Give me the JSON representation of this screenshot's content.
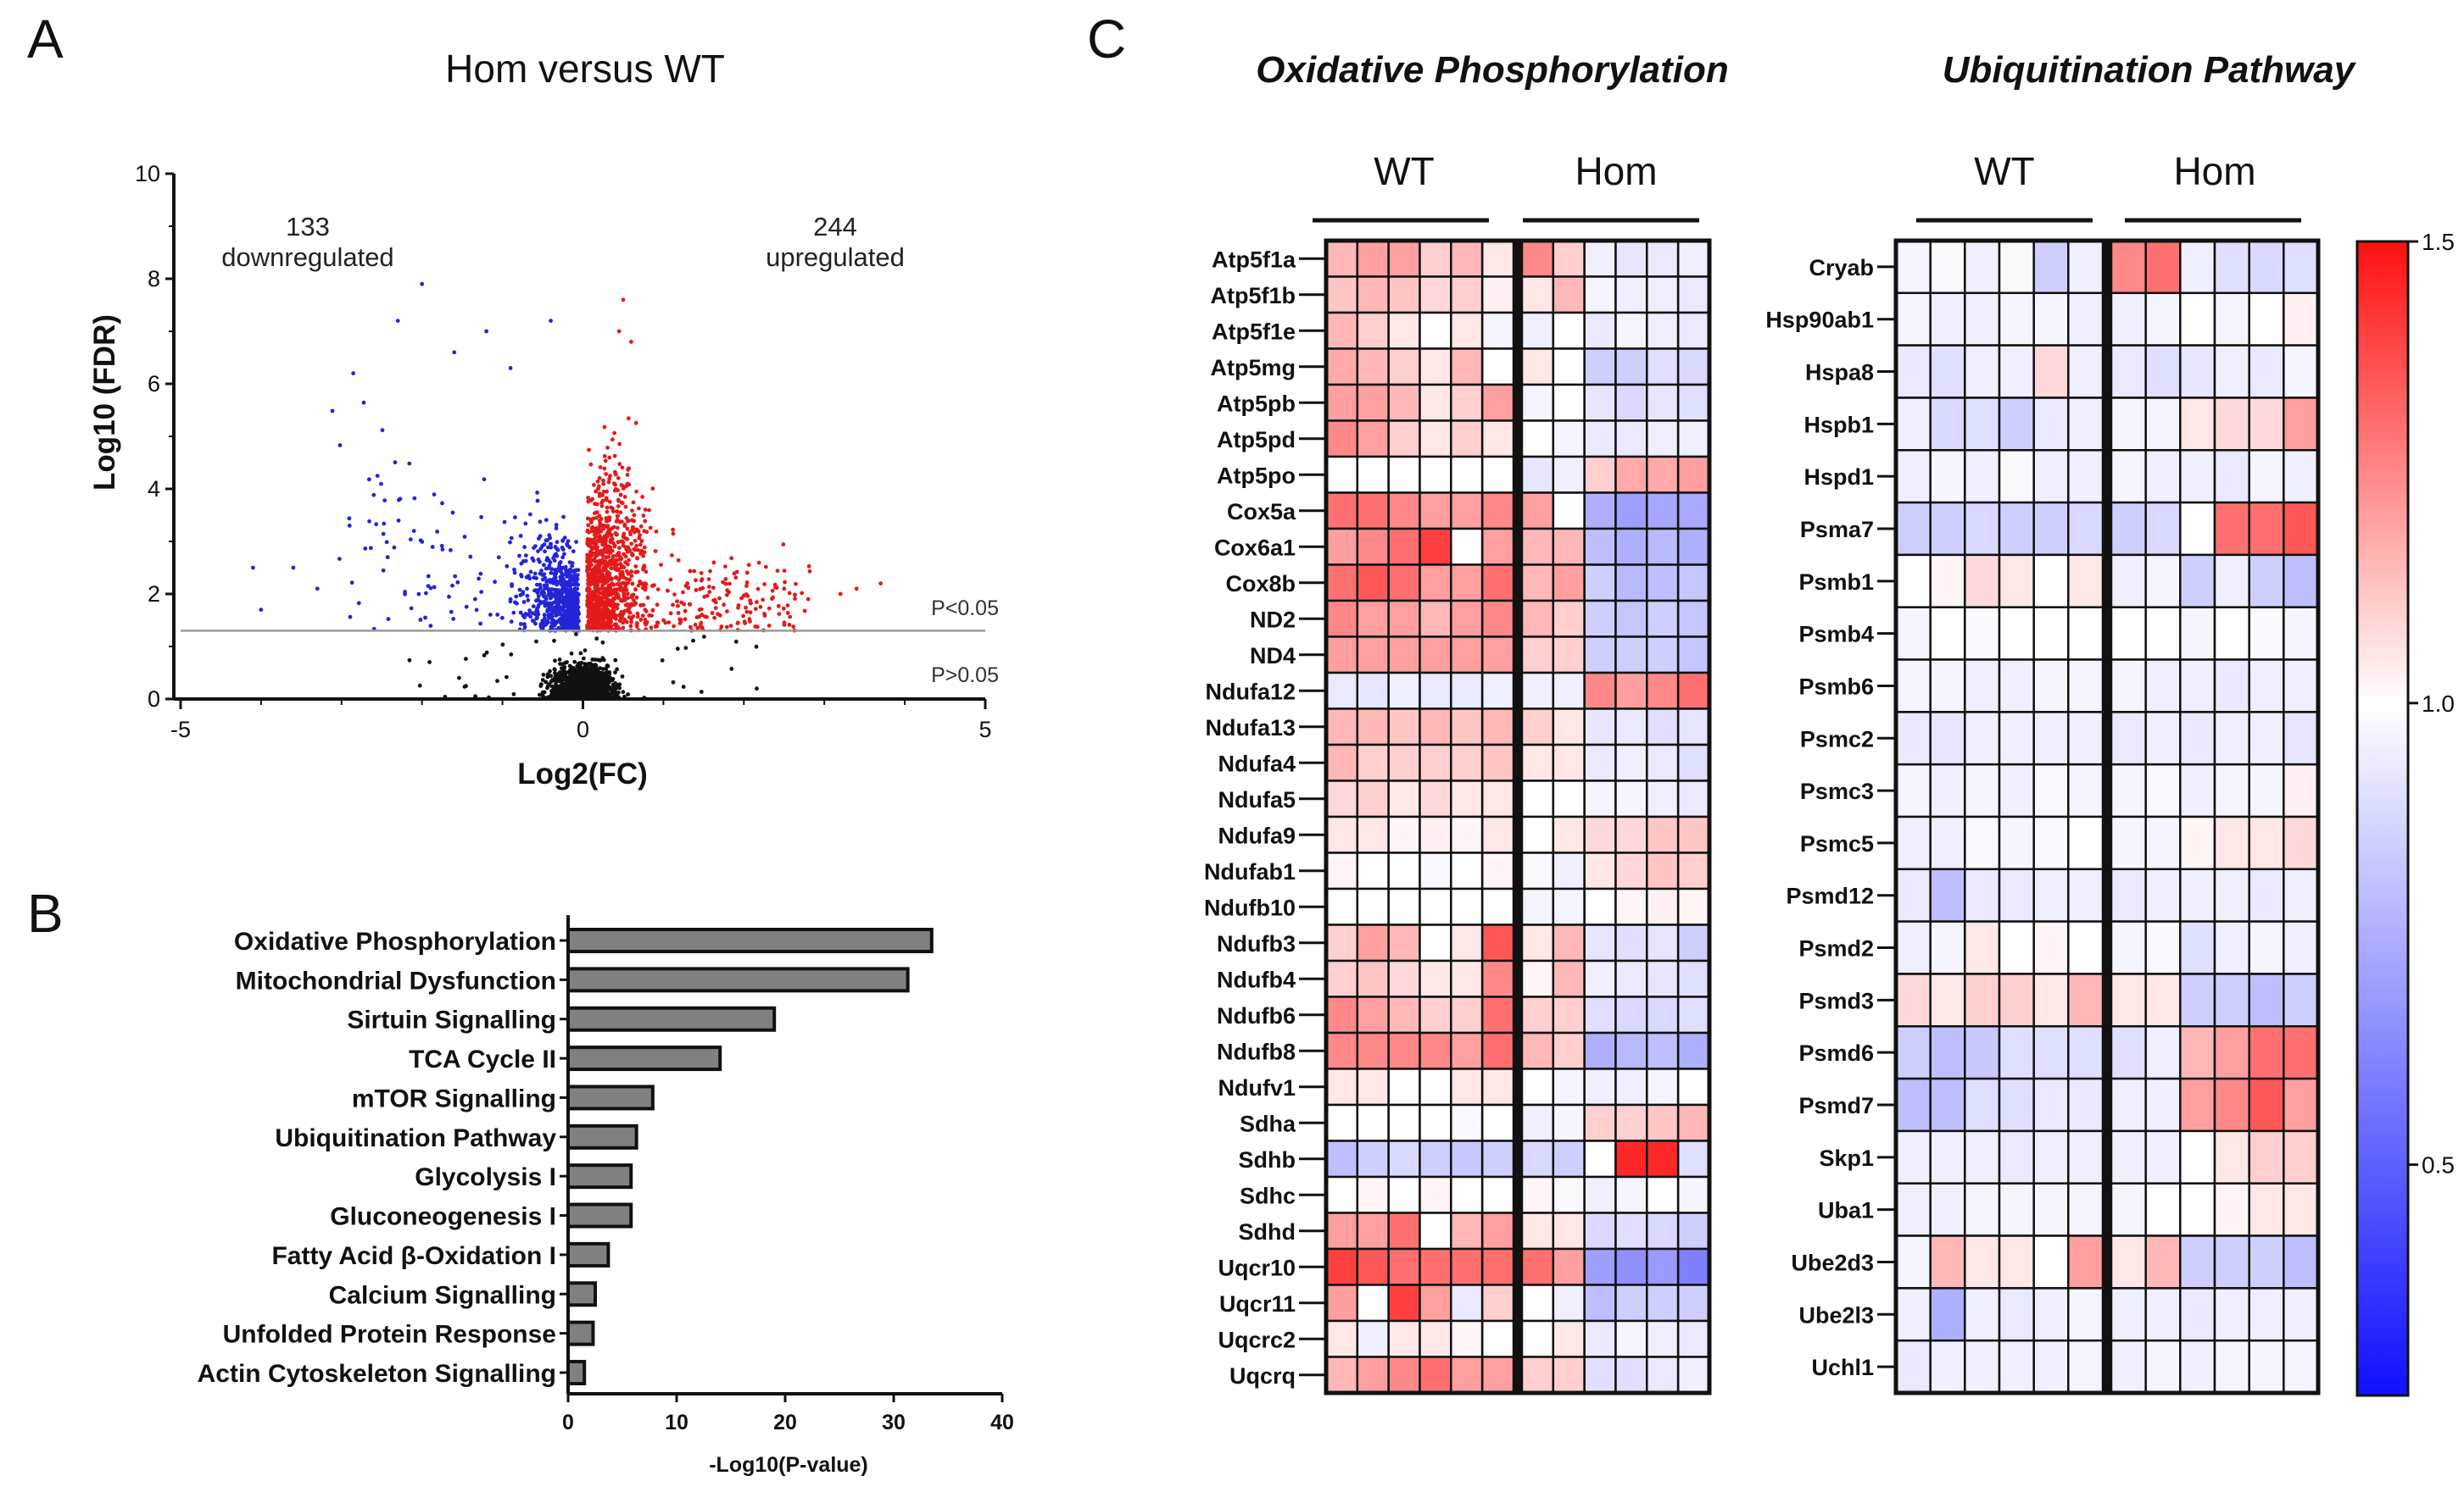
{
  "chart_data": [
    {
      "panel": "A",
      "type": "scatter",
      "title": "Hom versus WT",
      "xlabel": "Log2(FC)",
      "ylabel": "Log10 (FDR)",
      "xlim": [
        -5,
        5
      ],
      "ylim": [
        0,
        10
      ],
      "x_ticks": [
        "-5",
        "0",
        "5"
      ],
      "y_ticks": [
        "0",
        "2",
        "4",
        "6",
        "8",
        "10"
      ],
      "threshold_y": 1.3,
      "threshold_labels": {
        "above": "P<0.05",
        "below": "P>0.05"
      },
      "annotations": {
        "down_count": "133",
        "down_label": "downregulated",
        "up_count": "244",
        "up_label": "upregulated"
      },
      "series": [
        {
          "name": "downregulated",
          "color": "#2424d8",
          "n": 700
        },
        {
          "name": "upregulated",
          "color": "#e41a1a",
          "n": 1250
        },
        {
          "name": "not significant",
          "color": "#111111",
          "n": 1100
        }
      ],
      "outliers": [
        {
          "x": -2.0,
          "y": 7.9
        },
        {
          "x": -2.3,
          "y": 7.2
        },
        {
          "x": -1.2,
          "y": 7.0
        },
        {
          "x": -0.4,
          "y": 7.2
        },
        {
          "x": -3.6,
          "y": 2.5
        },
        {
          "x": -4.1,
          "y": 2.5
        },
        {
          "x": -4.0,
          "y": 1.7
        },
        {
          "x": -3.3,
          "y": 2.1
        },
        {
          "x": -2.9,
          "y": 3.3
        },
        {
          "x": -2.1,
          "y": 3.2
        },
        {
          "x": -1.6,
          "y": 6.6
        },
        {
          "x": -0.9,
          "y": 6.3
        },
        {
          "x": 0.5,
          "y": 7.6
        },
        {
          "x": 0.45,
          "y": 7.0
        },
        {
          "x": 0.6,
          "y": 6.8
        },
        {
          "x": 3.7,
          "y": 2.2
        },
        {
          "x": 3.2,
          "y": 2.0
        },
        {
          "x": 2.8,
          "y": 1.9
        },
        {
          "x": 3.4,
          "y": 2.1
        },
        {
          "x": 2.5,
          "y": 2.1
        }
      ]
    },
    {
      "panel": "B",
      "type": "bar",
      "orientation": "horizontal",
      "xlabel": "-Log10(P-value)",
      "xlim": [
        0,
        40
      ],
      "x_ticks": [
        "0",
        "10",
        "20",
        "30",
        "40"
      ],
      "categories": [
        "Oxidative Phosphorylation",
        "Mitochondrial Dysfunction",
        "Sirtuin Signalling",
        "TCA Cycle II",
        "mTOR Signalling",
        "Ubiquitination Pathway",
        "Glycolysis I",
        "Gluconeogenesis I",
        "Fatty Acid β-Oxidation I",
        "Calcium Signalling",
        "Unfolded Protein Response",
        "Actin Cytoskeleton Signalling"
      ],
      "values": [
        33.5,
        31.3,
        19.0,
        14.0,
        7.8,
        6.3,
        5.8,
        5.8,
        3.7,
        2.5,
        2.3,
        1.5
      ],
      "bar_color": "#808080"
    },
    {
      "panel": "C1",
      "type": "heatmap",
      "title": "Oxidative Phosphorylation",
      "groups": [
        "WT",
        "Hom"
      ],
      "rows": [
        "Atp5f1a",
        "Atp5f1b",
        "Atp5f1e",
        "Atp5mg",
        "Atp5pb",
        "Atp5pd",
        "Atp5po",
        "Cox5a",
        "Cox6a1",
        "Cox8b",
        "ND2",
        "ND4",
        "Ndufa12",
        "Ndufa13",
        "Ndufa4",
        "Ndufa5",
        "Ndufa9",
        "Ndufab1",
        "Ndufb10",
        "Ndufb3",
        "Ndufb4",
        "Ndufb6",
        "Ndufb8",
        "Ndufv1",
        "Sdha",
        "Sdhb",
        "Sdhc",
        "Sdhd",
        "Uqcr10",
        "Uqcr11",
        "Uqcrc2",
        "Uqcrq"
      ],
      "values": [
        [
          1.15,
          1.2,
          1.2,
          1.1,
          1.15,
          1.05,
          1.25,
          1.1,
          0.95,
          0.92,
          0.93,
          0.95
        ],
        [
          1.12,
          1.15,
          1.12,
          1.08,
          1.1,
          1.03,
          1.05,
          1.15,
          0.97,
          0.95,
          0.95,
          0.93
        ],
        [
          1.15,
          1.1,
          1.05,
          1.0,
          1.05,
          0.97,
          0.95,
          1.0,
          0.93,
          0.97,
          0.95,
          0.93
        ],
        [
          1.18,
          1.15,
          1.1,
          1.05,
          1.15,
          1.0,
          1.05,
          1.0,
          0.85,
          0.85,
          0.9,
          0.88
        ],
        [
          1.2,
          1.2,
          1.15,
          1.05,
          1.1,
          1.2,
          0.97,
          1.0,
          0.92,
          0.88,
          0.92,
          0.9
        ],
        [
          1.25,
          1.2,
          1.1,
          1.05,
          1.1,
          1.05,
          1.0,
          0.97,
          0.93,
          0.93,
          0.95,
          0.95
        ],
        [
          1.0,
          1.0,
          1.0,
          1.0,
          1.0,
          1.0,
          0.92,
          0.95,
          1.1,
          1.18,
          1.18,
          1.2
        ],
        [
          1.3,
          1.3,
          1.25,
          1.2,
          1.2,
          1.25,
          1.2,
          1.0,
          0.75,
          0.7,
          0.72,
          0.73
        ],
        [
          1.2,
          1.25,
          1.3,
          1.4,
          1.0,
          1.2,
          1.15,
          1.15,
          0.8,
          0.75,
          0.78,
          0.75
        ],
        [
          1.3,
          1.35,
          1.3,
          1.2,
          1.2,
          1.3,
          1.15,
          1.2,
          0.85,
          0.78,
          0.8,
          0.82
        ],
        [
          1.25,
          1.2,
          1.2,
          1.15,
          1.2,
          1.25,
          1.15,
          1.1,
          0.85,
          0.82,
          0.85,
          0.82
        ],
        [
          1.2,
          1.2,
          1.2,
          1.2,
          1.2,
          1.2,
          1.1,
          1.1,
          0.85,
          0.85,
          0.85,
          0.82
        ],
        [
          0.93,
          0.92,
          0.95,
          0.93,
          0.93,
          0.95,
          0.95,
          0.95,
          1.25,
          1.2,
          1.25,
          1.3
        ],
        [
          1.15,
          1.15,
          1.12,
          1.15,
          1.12,
          1.15,
          1.1,
          1.05,
          0.92,
          0.93,
          0.9,
          0.92
        ],
        [
          1.15,
          1.1,
          1.1,
          1.1,
          1.1,
          1.12,
          1.05,
          1.05,
          0.93,
          0.95,
          0.93,
          0.9
        ],
        [
          1.08,
          1.1,
          1.05,
          1.08,
          1.05,
          1.05,
          1.0,
          1.0,
          0.97,
          0.97,
          0.95,
          0.93
        ],
        [
          1.05,
          1.05,
          1.02,
          1.03,
          1.02,
          1.05,
          1.0,
          1.05,
          1.08,
          1.08,
          1.12,
          1.12
        ],
        [
          1.02,
          1.0,
          1.0,
          0.98,
          1.0,
          1.02,
          0.98,
          0.95,
          1.05,
          1.08,
          1.12,
          1.1
        ],
        [
          1.0,
          1.0,
          1.0,
          1.0,
          1.0,
          1.0,
          0.97,
          0.97,
          1.0,
          1.02,
          1.03,
          1.02
        ],
        [
          1.1,
          1.2,
          1.15,
          1.0,
          1.05,
          1.35,
          1.05,
          1.15,
          0.92,
          0.9,
          0.92,
          0.85
        ],
        [
          1.1,
          1.12,
          1.08,
          1.05,
          1.05,
          1.25,
          1.02,
          1.15,
          0.95,
          0.93,
          0.92,
          0.9
        ],
        [
          1.25,
          1.2,
          1.15,
          1.1,
          1.1,
          1.3,
          1.1,
          1.1,
          0.9,
          0.88,
          0.88,
          0.9
        ],
        [
          1.25,
          1.25,
          1.25,
          1.25,
          1.2,
          1.3,
          1.15,
          1.1,
          0.75,
          0.78,
          0.8,
          0.75
        ],
        [
          1.05,
          1.05,
          1.0,
          1.0,
          1.05,
          1.05,
          1.0,
          0.97,
          0.95,
          0.95,
          0.97,
          1.0
        ],
        [
          1.0,
          1.0,
          1.0,
          1.0,
          0.98,
          1.0,
          0.95,
          0.97,
          1.1,
          1.1,
          1.12,
          1.15
        ],
        [
          0.8,
          0.85,
          0.88,
          0.85,
          0.83,
          0.85,
          0.88,
          0.85,
          1.0,
          1.45,
          1.45,
          0.9
        ],
        [
          1.0,
          1.02,
          1.0,
          1.02,
          1.0,
          1.0,
          1.02,
          0.98,
          0.95,
          0.97,
          1.0,
          0.97
        ],
        [
          1.2,
          1.2,
          1.3,
          1.0,
          1.15,
          1.2,
          1.05,
          1.05,
          0.88,
          0.9,
          0.88,
          0.85
        ],
        [
          1.4,
          1.35,
          1.3,
          1.3,
          1.3,
          1.3,
          1.3,
          1.2,
          0.7,
          0.65,
          0.68,
          0.6
        ],
        [
          1.2,
          1.0,
          1.4,
          1.2,
          0.93,
          1.1,
          1.0,
          0.95,
          0.8,
          0.85,
          0.85,
          0.85
        ],
        [
          1.05,
          0.95,
          1.05,
          1.05,
          1.02,
          1.0,
          1.0,
          1.05,
          0.93,
          0.97,
          0.95,
          0.93
        ],
        [
          1.15,
          1.2,
          1.25,
          1.3,
          1.2,
          1.2,
          1.1,
          1.1,
          0.9,
          0.9,
          0.93,
          0.95
        ]
      ],
      "scale_range": [
        0.25,
        1.5
      ]
    },
    {
      "panel": "C2",
      "type": "heatmap",
      "title": "Ubiquitination Pathway",
      "groups": [
        "WT",
        "Hom"
      ],
      "rows": [
        "Cryab",
        "Hsp90ab1",
        "Hspa8",
        "Hspb1",
        "Hspd1",
        "Psma7",
        "Psmb1",
        "Psmb4",
        "Psmb6",
        "Psmc2",
        "Psmc3",
        "Psmc5",
        "Psmd12",
        "Psmd2",
        "Psmd3",
        "Psmd6",
        "Psmd7",
        "Skp1",
        "Uba1",
        "Ube2d3",
        "Ube2l3",
        "Uchl1"
      ],
      "values": [
        [
          0.97,
          0.98,
          0.95,
          0.98,
          0.85,
          0.95,
          1.25,
          1.3,
          0.95,
          0.9,
          0.88,
          0.9
        ],
        [
          0.97,
          0.95,
          0.95,
          0.97,
          0.97,
          0.95,
          0.95,
          0.97,
          1.0,
          0.97,
          1.0,
          1.03
        ],
        [
          0.93,
          0.9,
          0.95,
          0.95,
          1.08,
          0.95,
          0.93,
          0.9,
          0.92,
          0.95,
          0.93,
          0.97
        ],
        [
          0.95,
          0.88,
          0.9,
          0.85,
          0.93,
          0.95,
          0.97,
          0.97,
          1.05,
          1.08,
          1.08,
          1.2
        ],
        [
          0.95,
          0.97,
          0.95,
          0.98,
          0.95,
          0.95,
          0.97,
          0.95,
          0.95,
          0.93,
          0.97,
          0.95
        ],
        [
          0.85,
          0.85,
          0.88,
          0.85,
          0.85,
          0.88,
          0.85,
          0.88,
          1.0,
          1.3,
          1.3,
          1.35
        ],
        [
          1.0,
          1.02,
          1.08,
          1.05,
          1.0,
          1.05,
          0.95,
          0.97,
          0.85,
          0.95,
          0.85,
          0.8
        ],
        [
          0.97,
          1.0,
          0.98,
          1.0,
          1.0,
          1.0,
          1.0,
          1.0,
          0.97,
          1.0,
          0.98,
          0.97
        ],
        [
          0.97,
          0.97,
          0.95,
          0.95,
          0.97,
          0.97,
          0.97,
          0.95,
          0.95,
          0.93,
          0.95,
          0.95
        ],
        [
          0.93,
          0.92,
          0.95,
          0.95,
          0.95,
          0.95,
          0.93,
          0.95,
          0.93,
          0.95,
          0.95,
          0.92
        ],
        [
          0.97,
          0.95,
          0.97,
          0.95,
          0.98,
          0.97,
          0.97,
          0.98,
          0.95,
          0.97,
          0.97,
          1.03
        ],
        [
          0.95,
          0.95,
          0.98,
          0.97,
          0.98,
          1.0,
          0.97,
          0.97,
          1.02,
          1.05,
          1.05,
          1.08
        ],
        [
          0.93,
          0.8,
          0.93,
          0.93,
          0.95,
          0.95,
          0.93,
          0.95,
          0.95,
          0.95,
          0.93,
          0.95
        ],
        [
          0.95,
          0.97,
          1.05,
          1.0,
          1.02,
          1.0,
          0.97,
          0.98,
          0.9,
          0.95,
          0.97,
          0.95
        ],
        [
          1.08,
          1.05,
          1.1,
          1.1,
          1.05,
          1.15,
          1.05,
          1.05,
          0.85,
          0.85,
          0.8,
          0.85
        ],
        [
          0.85,
          0.8,
          0.83,
          0.9,
          0.9,
          0.9,
          0.9,
          0.95,
          1.15,
          1.2,
          1.3,
          1.3
        ],
        [
          0.8,
          0.8,
          0.9,
          0.9,
          0.93,
          0.93,
          0.95,
          0.95,
          1.2,
          1.25,
          1.35,
          1.2
        ],
        [
          0.95,
          0.95,
          0.95,
          0.93,
          0.95,
          0.95,
          0.95,
          0.95,
          1.0,
          1.05,
          1.1,
          1.1
        ],
        [
          0.95,
          0.95,
          0.97,
          0.97,
          0.97,
          0.97,
          0.97,
          1.0,
          1.0,
          1.02,
          1.05,
          1.05
        ],
        [
          0.97,
          1.15,
          1.05,
          1.05,
          1.0,
          1.2,
          1.05,
          1.15,
          0.85,
          0.85,
          0.85,
          0.8
        ],
        [
          0.95,
          0.75,
          0.95,
          0.93,
          0.95,
          0.97,
          0.95,
          0.95,
          0.93,
          0.95,
          0.95,
          0.95
        ],
        [
          0.93,
          0.95,
          0.95,
          0.95,
          0.95,
          0.97,
          0.95,
          0.97,
          0.95,
          0.97,
          0.97,
          0.97
        ]
      ],
      "scale_range": [
        0.25,
        1.5
      ]
    },
    {
      "panel": "C-scale",
      "type": "colorbar",
      "range": [
        0.25,
        1.5
      ],
      "ticks": [
        "1.5",
        "1.0",
        "0.5"
      ],
      "colors": {
        "low": "#1010ff",
        "mid": "#ffffff",
        "high": "#ff1010"
      }
    }
  ],
  "panel_labels": [
    "A",
    "B",
    "C"
  ]
}
